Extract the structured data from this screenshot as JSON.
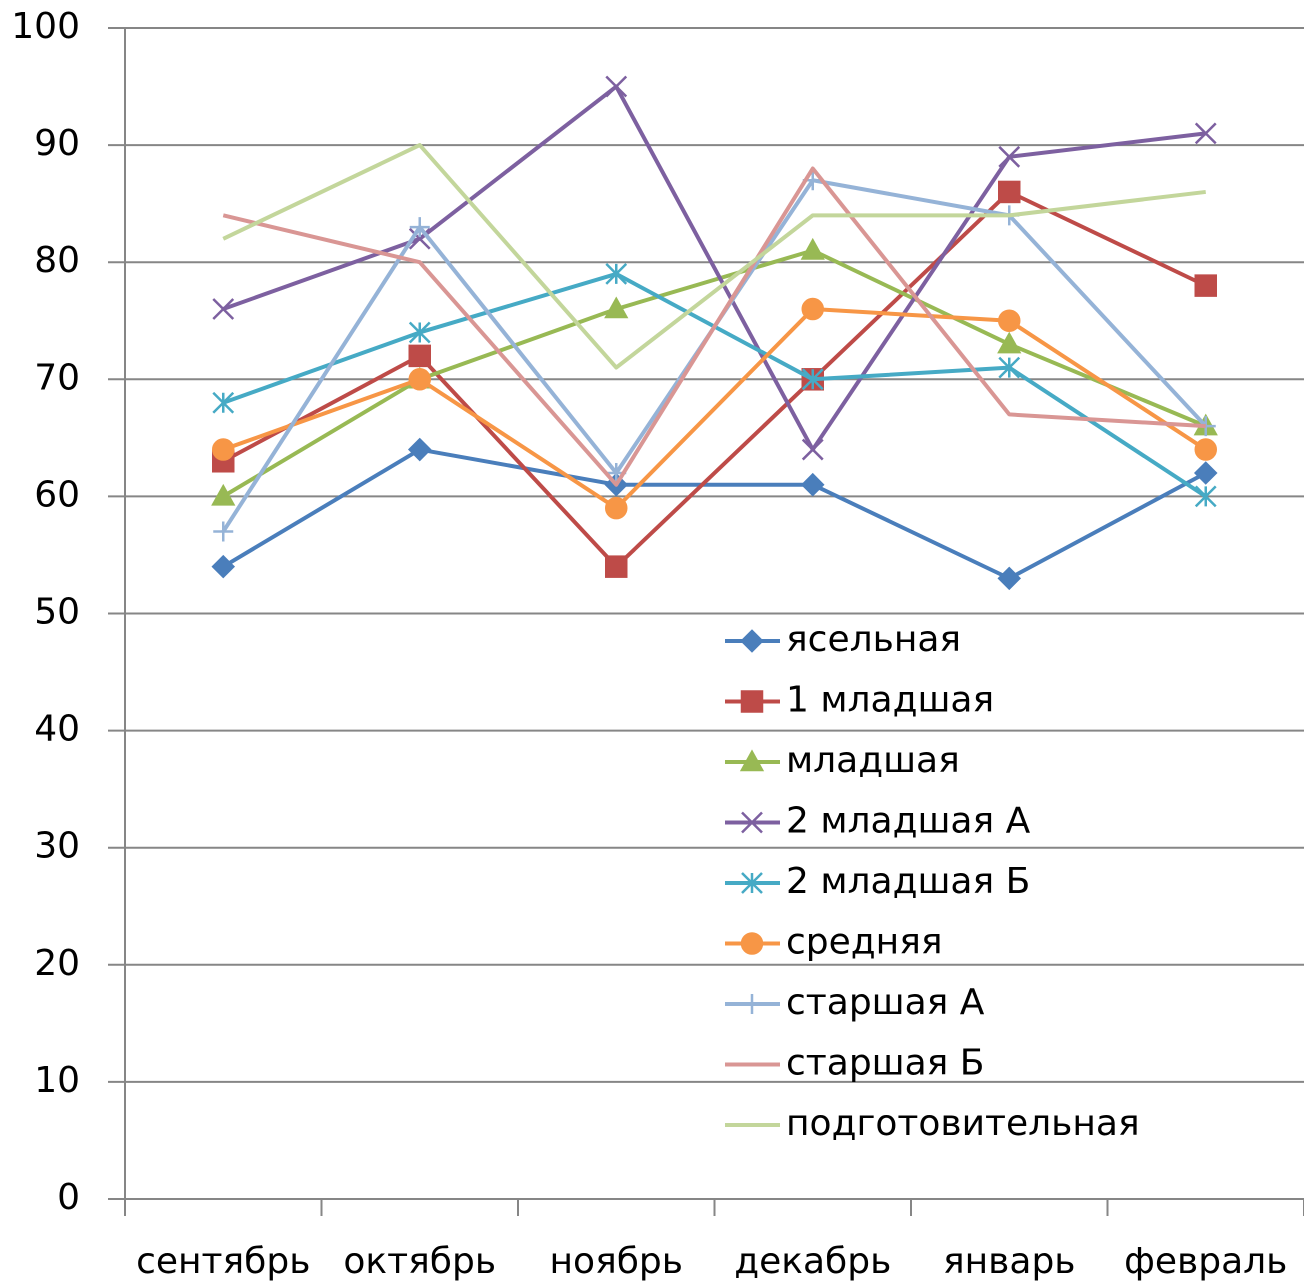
{
  "chart_data": {
    "type": "line",
    "categories": [
      "сентябрь",
      "октябрь",
      "ноябрь",
      "декабрь",
      "январь",
      "февраль"
    ],
    "ylim": [
      0,
      100
    ],
    "yticks": [
      0,
      10,
      20,
      30,
      40,
      50,
      60,
      70,
      80,
      90,
      100
    ],
    "grid": true,
    "series": [
      {
        "name": "ясельная",
        "color": "#4a7ebb",
        "marker": "diamond",
        "values": [
          54,
          64,
          61,
          61,
          53,
          62
        ]
      },
      {
        "name": "1 младшая",
        "color": "#be4b48",
        "marker": "square",
        "values": [
          63,
          72,
          54,
          70,
          86,
          78
        ]
      },
      {
        "name": "младшая",
        "color": "#98b954",
        "marker": "triangle",
        "values": [
          60,
          70,
          76,
          81,
          73,
          66
        ]
      },
      {
        "name": "2 младшая А",
        "color": "#7d60a0",
        "marker": "x",
        "values": [
          76,
          82,
          95,
          64,
          89,
          91
        ]
      },
      {
        "name": "2 младшая Б",
        "color": "#46aac5",
        "marker": "star",
        "values": [
          68,
          74,
          79,
          70,
          71,
          60
        ]
      },
      {
        "name": "средняя",
        "color": "#f79646",
        "marker": "circle",
        "values": [
          64,
          70,
          59,
          76,
          75,
          64
        ]
      },
      {
        "name": "старшая А",
        "color": "#95b3d7",
        "marker": "plus",
        "values": [
          57,
          83,
          62,
          87,
          84,
          66
        ]
      },
      {
        "name": "старшая Б",
        "color": "#d99694",
        "marker": "none",
        "values": [
          84,
          80,
          61,
          88,
          67,
          66
        ]
      },
      {
        "name": "подготовительная",
        "color": "#c3d69b",
        "marker": "none",
        "values": [
          82,
          90,
          71,
          84,
          84,
          86
        ]
      }
    ]
  }
}
